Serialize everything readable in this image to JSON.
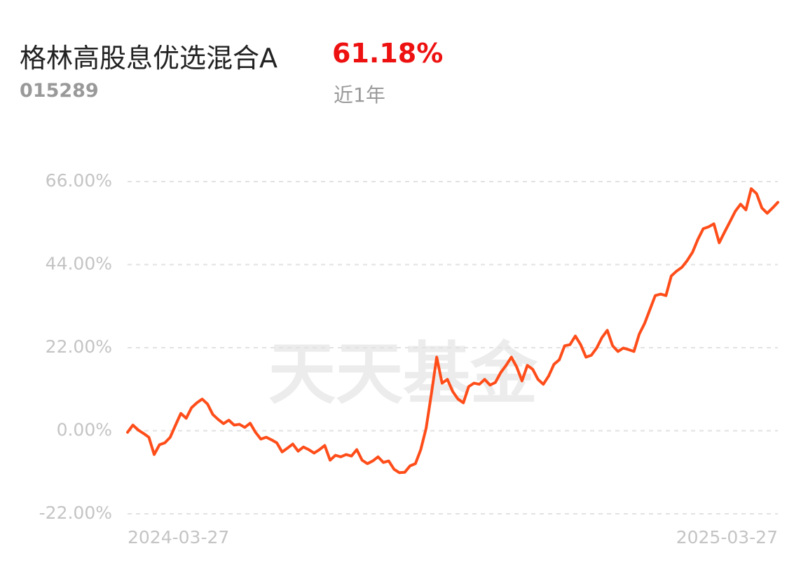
{
  "header": {
    "title": "格林高股息优选混合A",
    "code": "015289",
    "return": "61.18%",
    "period": "近1年"
  },
  "chart_data": {
    "type": "line",
    "watermark": "天天基金",
    "color": "#ff4d1a",
    "grid": true,
    "ylim": [
      -22,
      66
    ],
    "yticks": [
      {
        "value": -22,
        "label": "-22.00%"
      },
      {
        "value": 0,
        "label": "0.00%"
      },
      {
        "value": 22,
        "label": "22.00%"
      },
      {
        "value": 44,
        "label": "44.00%"
      },
      {
        "value": 66,
        "label": "66.00%"
      }
    ],
    "categories": [
      "2024-03-27",
      null,
      null,
      null,
      null,
      null,
      null,
      null,
      null,
      null,
      null,
      null,
      null,
      null,
      null,
      null,
      null,
      null,
      null,
      null,
      null,
      null,
      null,
      null,
      null,
      null,
      null,
      null,
      null,
      null,
      null,
      null,
      null,
      null,
      null,
      null,
      null,
      null,
      null,
      null,
      null,
      null,
      null,
      null,
      null,
      null,
      null,
      null,
      null,
      null,
      null,
      null,
      null,
      null,
      null,
      null,
      null,
      null,
      null,
      null,
      null,
      null,
      null,
      null,
      null,
      null,
      null,
      null,
      null,
      null,
      null,
      null,
      null,
      null,
      null,
      null,
      null,
      null,
      null,
      null,
      null,
      null,
      null,
      null,
      null,
      null,
      null,
      null,
      null,
      null,
      null,
      null,
      null,
      null,
      null,
      null,
      null,
      null,
      null,
      null,
      null,
      null,
      null,
      null,
      null,
      null,
      null,
      null,
      null,
      null,
      null,
      null,
      null,
      null,
      null,
      null,
      null,
      null,
      null,
      null,
      null,
      null,
      "2025-03-27"
    ],
    "values": [
      -0.4,
      1.5,
      0.2,
      -0.7,
      -1.7,
      -6.3,
      -3.7,
      -3.2,
      -1.7,
      1.5,
      4.6,
      3.3,
      6.1,
      7.4,
      8.4,
      7.1,
      4.3,
      3.0,
      1.9,
      2.8,
      1.5,
      1.7,
      0.9,
      2.0,
      -0.4,
      -2.2,
      -1.7,
      -2.4,
      -3.2,
      -5.6,
      -4.6,
      -3.5,
      -5.4,
      -4.3,
      -5.0,
      -5.9,
      -5.0,
      -3.9,
      -7.8,
      -6.5,
      -6.9,
      -6.3,
      -6.7,
      -5.0,
      -7.8,
      -8.7,
      -8.0,
      -6.9,
      -8.4,
      -8.0,
      -10.2,
      -11.1,
      -11.0,
      -9.3,
      -8.7,
      -5.0,
      0.6,
      9.8,
      19.5,
      12.6,
      13.6,
      10.4,
      8.4,
      7.4,
      11.7,
      12.6,
      12.3,
      13.6,
      12.1,
      12.8,
      15.4,
      17.3,
      19.5,
      16.9,
      13.2,
      17.3,
      16.3,
      13.6,
      12.3,
      14.5,
      17.6,
      18.8,
      22.5,
      22.8,
      25.1,
      22.8,
      19.5,
      20.0,
      21.9,
      24.7,
      26.6,
      22.5,
      21.0,
      21.9,
      21.5,
      21.0,
      25.6,
      28.4,
      32.1,
      35.8,
      36.2,
      35.8,
      41.0,
      42.3,
      43.3,
      45.1,
      47.3,
      50.7,
      53.5,
      54.0,
      54.8,
      49.8,
      52.6,
      55.3,
      58.1,
      60.0,
      58.5,
      64.1,
      62.8,
      59.0,
      57.6,
      59.0,
      60.5
    ]
  }
}
